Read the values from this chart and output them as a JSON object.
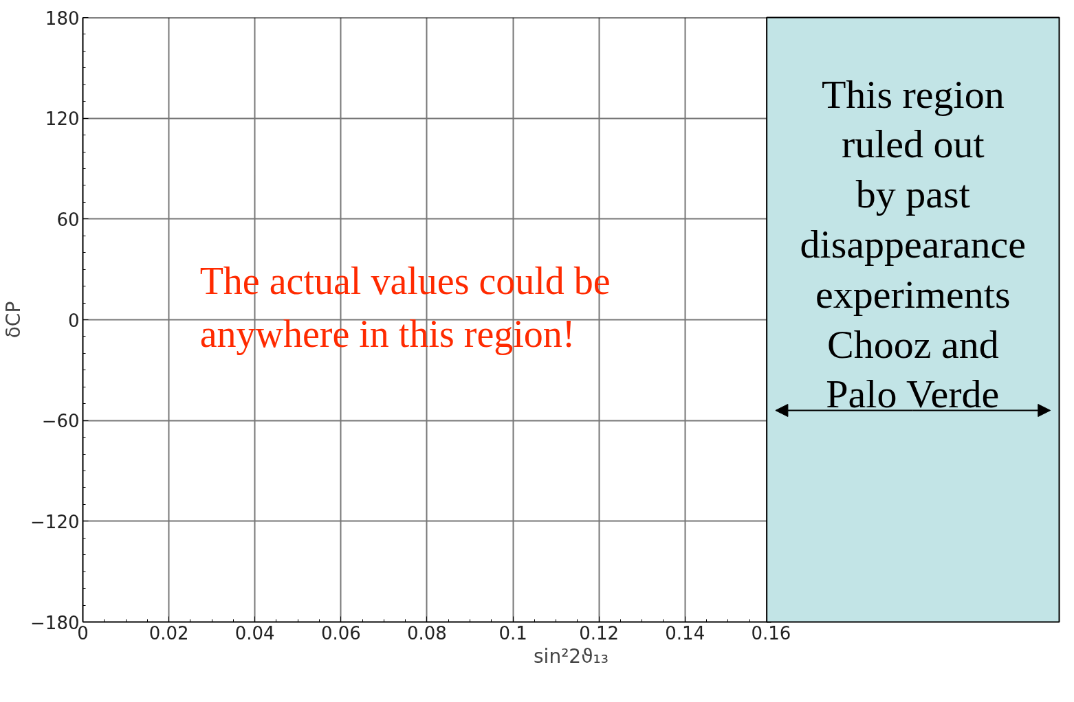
{
  "chart_data": {
    "type": "scatter",
    "xlabel": "sin²2ϑ₁₃",
    "ylabel": "δCP",
    "xlim": [
      0,
      0.16
    ],
    "ylim": [
      -180,
      180
    ],
    "xticks": [
      0,
      0.02,
      0.04,
      0.06,
      0.08,
      0.1,
      0.12,
      0.14,
      0.16
    ],
    "yticks": [
      -180,
      -120,
      -60,
      0,
      60,
      120,
      180
    ],
    "grid": true,
    "bands": [
      {
        "axis": "x",
        "from": 0.159,
        "to": 0.227,
        "label": "This region\nruled out\nby past\ndisappearance\nexperiments\nChooz and\nPalo Verde",
        "color": "#c2e4e6"
      }
    ],
    "annotations": [
      "The actual values could be\nanywhere in this region!"
    ]
  }
}
